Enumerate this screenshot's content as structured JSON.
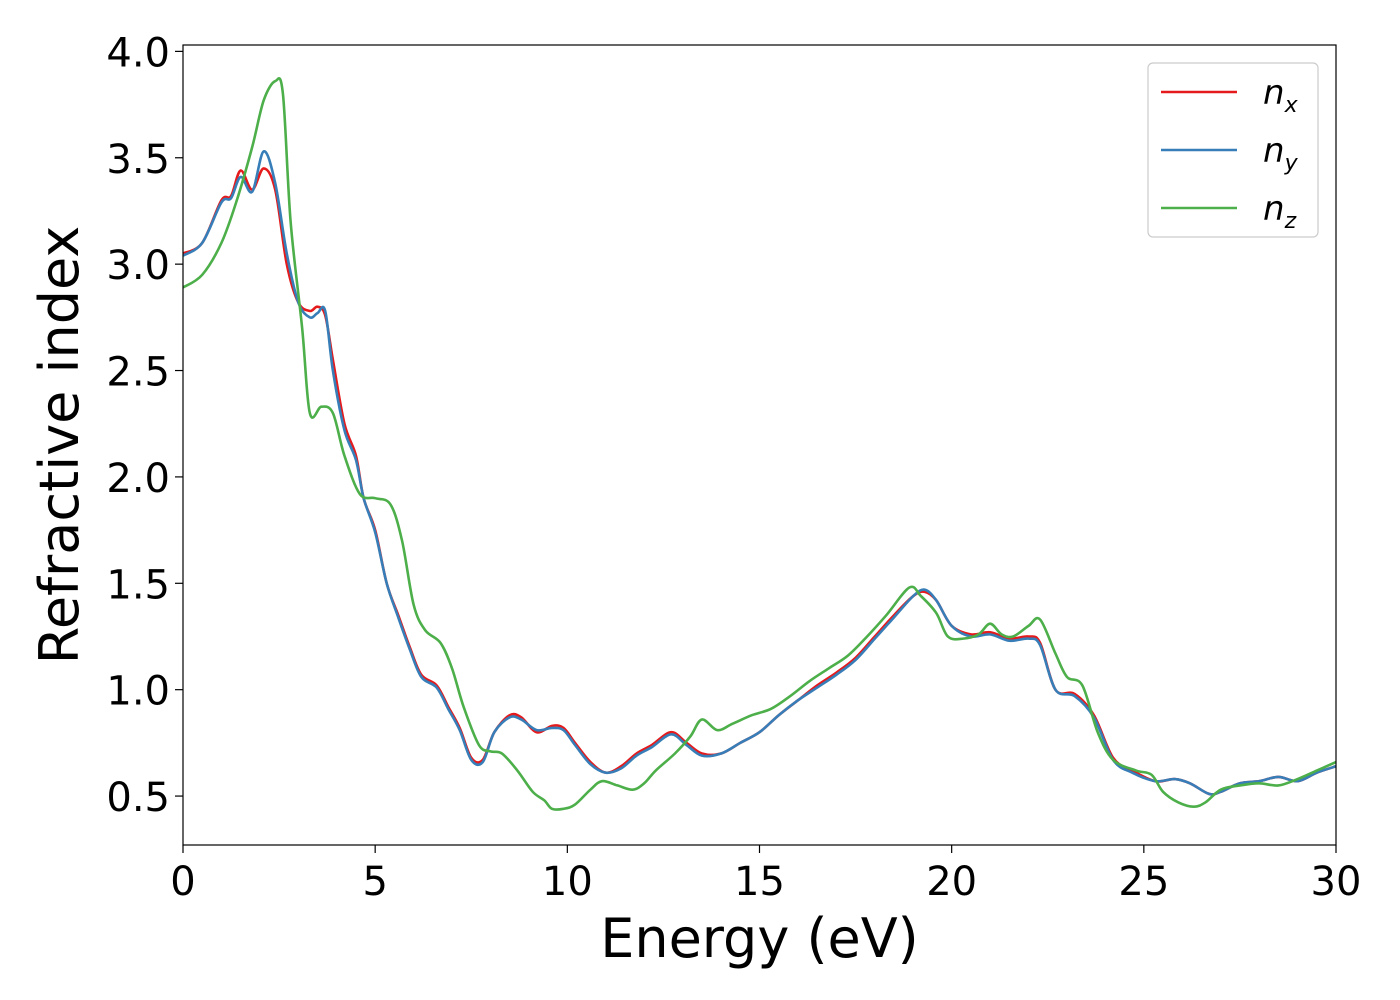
{
  "chart_data": {
    "type": "line",
    "xlabel": "Energy (eV)",
    "ylabel": "Refractive index",
    "xlim": [
      0,
      30
    ],
    "ylim": [
      0.27,
      4.03
    ],
    "xticks": [
      "0",
      "5",
      "10",
      "15",
      "20",
      "25",
      "30"
    ],
    "yticks": [
      "0.5",
      "1.0",
      "1.5",
      "2.0",
      "2.5",
      "3.0",
      "3.5",
      "4.0"
    ],
    "grid": false,
    "legend_position": "top-right",
    "series": [
      {
        "name": "n",
        "subscript": "x",
        "color": "#e41a1c",
        "points": [
          [
            0,
            3.05
          ],
          [
            0.5,
            3.1
          ],
          [
            1.0,
            3.3
          ],
          [
            1.25,
            3.32
          ],
          [
            1.5,
            3.44
          ],
          [
            1.8,
            3.35
          ],
          [
            2.1,
            3.45
          ],
          [
            2.4,
            3.35
          ],
          [
            2.7,
            3.0
          ],
          [
            3.0,
            2.82
          ],
          [
            3.3,
            2.78
          ],
          [
            3.5,
            2.8
          ],
          [
            3.7,
            2.76
          ],
          [
            3.9,
            2.55
          ],
          [
            4.2,
            2.25
          ],
          [
            4.5,
            2.1
          ],
          [
            4.7,
            1.9
          ],
          [
            5.0,
            1.75
          ],
          [
            5.3,
            1.5
          ],
          [
            5.6,
            1.35
          ],
          [
            5.9,
            1.2
          ],
          [
            6.2,
            1.07
          ],
          [
            6.6,
            1.02
          ],
          [
            6.9,
            0.92
          ],
          [
            7.2,
            0.82
          ],
          [
            7.5,
            0.68
          ],
          [
            7.8,
            0.67
          ],
          [
            8.1,
            0.8
          ],
          [
            8.5,
            0.88
          ],
          [
            8.8,
            0.87
          ],
          [
            9.2,
            0.8
          ],
          [
            9.6,
            0.83
          ],
          [
            9.9,
            0.82
          ],
          [
            10.2,
            0.75
          ],
          [
            10.6,
            0.66
          ],
          [
            11.0,
            0.61
          ],
          [
            11.4,
            0.64
          ],
          [
            11.8,
            0.7
          ],
          [
            12.2,
            0.74
          ],
          [
            12.7,
            0.8
          ],
          [
            13.1,
            0.75
          ],
          [
            13.5,
            0.7
          ],
          [
            14.0,
            0.7
          ],
          [
            14.5,
            0.75
          ],
          [
            15.0,
            0.8
          ],
          [
            15.5,
            0.88
          ],
          [
            16.0,
            0.95
          ],
          [
            16.5,
            1.02
          ],
          [
            17.0,
            1.08
          ],
          [
            17.5,
            1.15
          ],
          [
            18.0,
            1.25
          ],
          [
            18.5,
            1.35
          ],
          [
            19.0,
            1.44
          ],
          [
            19.3,
            1.46
          ],
          [
            19.6,
            1.42
          ],
          [
            20.0,
            1.3
          ],
          [
            20.5,
            1.26
          ],
          [
            21.0,
            1.27
          ],
          [
            21.5,
            1.24
          ],
          [
            22.0,
            1.25
          ],
          [
            22.3,
            1.22
          ],
          [
            22.7,
            1.0
          ],
          [
            23.2,
            0.98
          ],
          [
            23.7,
            0.88
          ],
          [
            24.2,
            0.68
          ],
          [
            24.7,
            0.62
          ],
          [
            25.3,
            0.57
          ],
          [
            25.8,
            0.58
          ],
          [
            26.2,
            0.56
          ],
          [
            26.7,
            0.51
          ],
          [
            27.0,
            0.52
          ],
          [
            27.5,
            0.56
          ],
          [
            28.0,
            0.57
          ],
          [
            28.5,
            0.59
          ],
          [
            29.0,
            0.57
          ],
          [
            29.5,
            0.61
          ],
          [
            30.0,
            0.64
          ]
        ]
      },
      {
        "name": "n",
        "subscript": "y",
        "color": "#377eb8",
        "points": [
          [
            0,
            3.04
          ],
          [
            0.5,
            3.1
          ],
          [
            1.0,
            3.29
          ],
          [
            1.25,
            3.31
          ],
          [
            1.5,
            3.41
          ],
          [
            1.8,
            3.34
          ],
          [
            2.1,
            3.53
          ],
          [
            2.4,
            3.38
          ],
          [
            2.7,
            3.05
          ],
          [
            3.0,
            2.82
          ],
          [
            3.3,
            2.75
          ],
          [
            3.5,
            2.77
          ],
          [
            3.7,
            2.78
          ],
          [
            3.9,
            2.5
          ],
          [
            4.2,
            2.22
          ],
          [
            4.5,
            2.08
          ],
          [
            4.7,
            1.9
          ],
          [
            5.0,
            1.74
          ],
          [
            5.3,
            1.5
          ],
          [
            5.6,
            1.34
          ],
          [
            5.9,
            1.19
          ],
          [
            6.2,
            1.06
          ],
          [
            6.6,
            1.01
          ],
          [
            6.9,
            0.91
          ],
          [
            7.2,
            0.81
          ],
          [
            7.5,
            0.67
          ],
          [
            7.8,
            0.66
          ],
          [
            8.1,
            0.8
          ],
          [
            8.5,
            0.87
          ],
          [
            8.8,
            0.86
          ],
          [
            9.2,
            0.81
          ],
          [
            9.6,
            0.82
          ],
          [
            9.9,
            0.81
          ],
          [
            10.2,
            0.74
          ],
          [
            10.6,
            0.65
          ],
          [
            11.0,
            0.61
          ],
          [
            11.4,
            0.63
          ],
          [
            11.8,
            0.69
          ],
          [
            12.2,
            0.73
          ],
          [
            12.7,
            0.79
          ],
          [
            13.1,
            0.74
          ],
          [
            13.5,
            0.69
          ],
          [
            14.0,
            0.7
          ],
          [
            14.5,
            0.75
          ],
          [
            15.0,
            0.8
          ],
          [
            15.5,
            0.88
          ],
          [
            16.0,
            0.95
          ],
          [
            16.5,
            1.01
          ],
          [
            17.0,
            1.07
          ],
          [
            17.5,
            1.14
          ],
          [
            18.0,
            1.24
          ],
          [
            18.5,
            1.34
          ],
          [
            19.0,
            1.44
          ],
          [
            19.3,
            1.47
          ],
          [
            19.6,
            1.42
          ],
          [
            20.0,
            1.3
          ],
          [
            20.5,
            1.25
          ],
          [
            21.0,
            1.26
          ],
          [
            21.5,
            1.23
          ],
          [
            22.0,
            1.24
          ],
          [
            22.3,
            1.21
          ],
          [
            22.7,
            1.0
          ],
          [
            23.2,
            0.97
          ],
          [
            23.7,
            0.87
          ],
          [
            24.2,
            0.67
          ],
          [
            24.7,
            0.61
          ],
          [
            25.3,
            0.57
          ],
          [
            25.8,
            0.58
          ],
          [
            26.2,
            0.56
          ],
          [
            26.7,
            0.51
          ],
          [
            27.0,
            0.52
          ],
          [
            27.5,
            0.56
          ],
          [
            28.0,
            0.57
          ],
          [
            28.5,
            0.59
          ],
          [
            29.0,
            0.57
          ],
          [
            29.5,
            0.61
          ],
          [
            30.0,
            0.64
          ]
        ]
      },
      {
        "name": "n",
        "subscript": "z",
        "color": "#4daf4a",
        "points": [
          [
            0,
            2.89
          ],
          [
            0.5,
            2.95
          ],
          [
            1.0,
            3.1
          ],
          [
            1.4,
            3.3
          ],
          [
            1.8,
            3.55
          ],
          [
            2.1,
            3.77
          ],
          [
            2.4,
            3.86
          ],
          [
            2.6,
            3.8
          ],
          [
            2.8,
            3.2
          ],
          [
            3.1,
            2.7
          ],
          [
            3.3,
            2.3
          ],
          [
            3.6,
            2.33
          ],
          [
            3.9,
            2.3
          ],
          [
            4.2,
            2.1
          ],
          [
            4.6,
            1.92
          ],
          [
            5.0,
            1.9
          ],
          [
            5.4,
            1.87
          ],
          [
            5.7,
            1.7
          ],
          [
            6.0,
            1.4
          ],
          [
            6.3,
            1.28
          ],
          [
            6.7,
            1.22
          ],
          [
            7.0,
            1.1
          ],
          [
            7.3,
            0.92
          ],
          [
            7.7,
            0.74
          ],
          [
            8.0,
            0.71
          ],
          [
            8.3,
            0.7
          ],
          [
            8.7,
            0.62
          ],
          [
            9.1,
            0.52
          ],
          [
            9.4,
            0.48
          ],
          [
            9.6,
            0.44
          ],
          [
            9.9,
            0.44
          ],
          [
            10.2,
            0.46
          ],
          [
            10.6,
            0.53
          ],
          [
            10.9,
            0.57
          ],
          [
            11.3,
            0.55
          ],
          [
            11.7,
            0.53
          ],
          [
            12.0,
            0.56
          ],
          [
            12.3,
            0.62
          ],
          [
            12.8,
            0.7
          ],
          [
            13.2,
            0.78
          ],
          [
            13.5,
            0.86
          ],
          [
            13.9,
            0.81
          ],
          [
            14.3,
            0.84
          ],
          [
            14.8,
            0.88
          ],
          [
            15.3,
            0.91
          ],
          [
            15.8,
            0.97
          ],
          [
            16.3,
            1.04
          ],
          [
            16.8,
            1.1
          ],
          [
            17.3,
            1.16
          ],
          [
            17.8,
            1.25
          ],
          [
            18.3,
            1.35
          ],
          [
            18.9,
            1.48
          ],
          [
            19.2,
            1.44
          ],
          [
            19.6,
            1.36
          ],
          [
            19.9,
            1.25
          ],
          [
            20.3,
            1.24
          ],
          [
            20.7,
            1.26
          ],
          [
            21.0,
            1.31
          ],
          [
            21.3,
            1.26
          ],
          [
            21.6,
            1.25
          ],
          [
            22.0,
            1.3
          ],
          [
            22.3,
            1.33
          ],
          [
            22.7,
            1.17
          ],
          [
            23.0,
            1.06
          ],
          [
            23.4,
            1.02
          ],
          [
            23.8,
            0.8
          ],
          [
            24.2,
            0.67
          ],
          [
            24.8,
            0.62
          ],
          [
            25.2,
            0.6
          ],
          [
            25.5,
            0.52
          ],
          [
            25.9,
            0.47
          ],
          [
            26.3,
            0.45
          ],
          [
            26.6,
            0.47
          ],
          [
            27.0,
            0.53
          ],
          [
            27.5,
            0.55
          ],
          [
            28.0,
            0.56
          ],
          [
            28.5,
            0.55
          ],
          [
            29.0,
            0.58
          ],
          [
            29.5,
            0.62
          ],
          [
            30.0,
            0.66
          ]
        ]
      }
    ]
  }
}
